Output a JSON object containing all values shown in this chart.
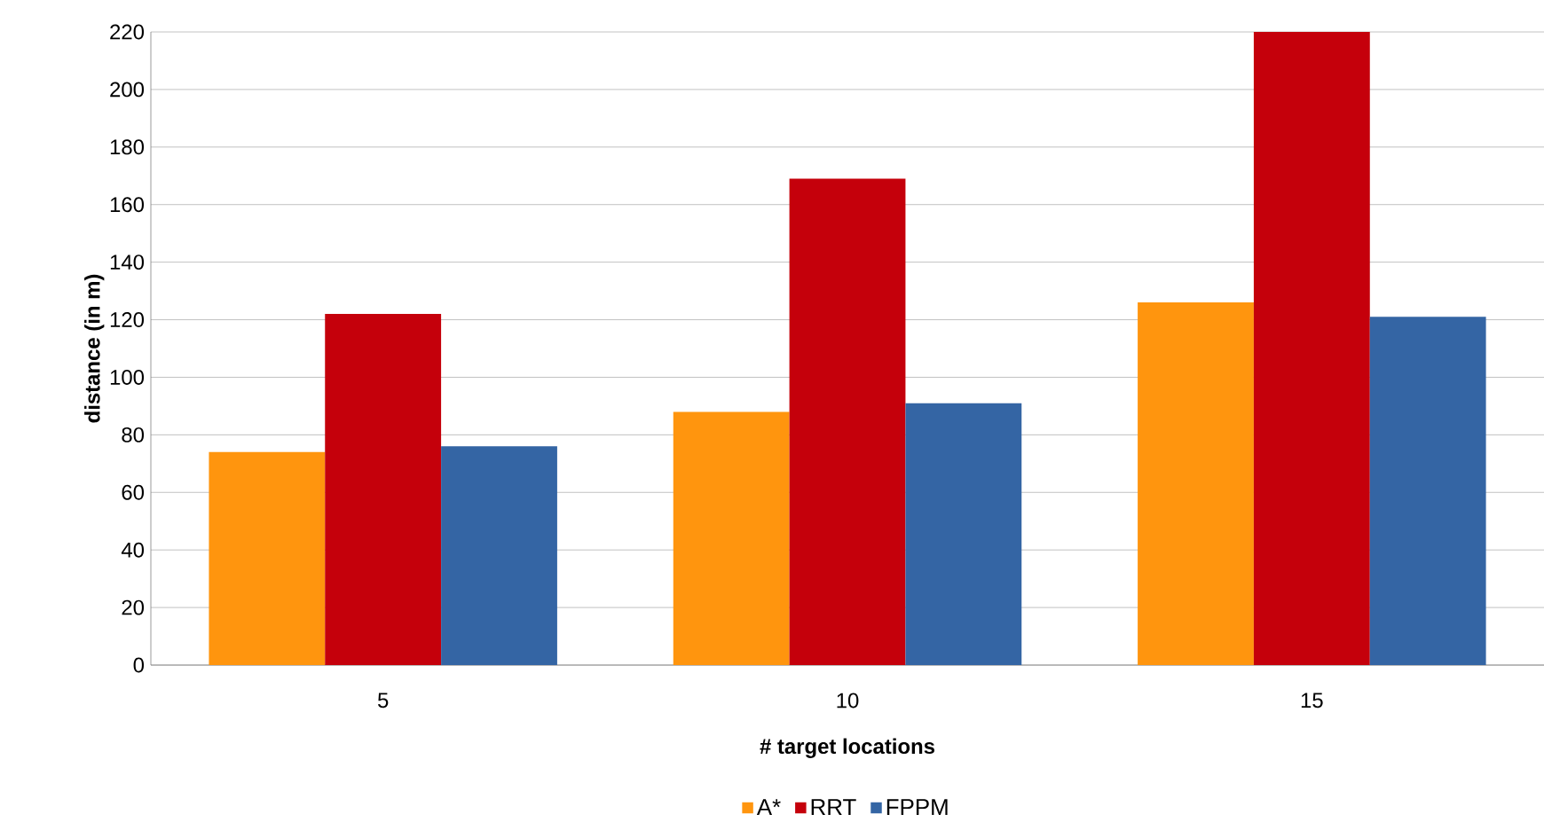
{
  "chart_data": {
    "type": "bar",
    "xlabel": "# target locations",
    "ylabel": "distance (in m)",
    "categories": [
      "5",
      "10",
      "15"
    ],
    "series": [
      {
        "name": "A*",
        "color": "#ff950e",
        "values": [
          74,
          88,
          126
        ]
      },
      {
        "name": "RRT",
        "color": "#c5000b",
        "values": [
          122,
          169,
          220
        ]
      },
      {
        "name": "FPPM",
        "color": "#3465a4",
        "values": [
          76,
          91,
          121
        ]
      }
    ],
    "ylim": [
      0,
      220
    ],
    "yticks": [
      0,
      20,
      40,
      60,
      80,
      100,
      120,
      140,
      160,
      180,
      200,
      220
    ],
    "grid": "y",
    "legend": "bottom"
  }
}
